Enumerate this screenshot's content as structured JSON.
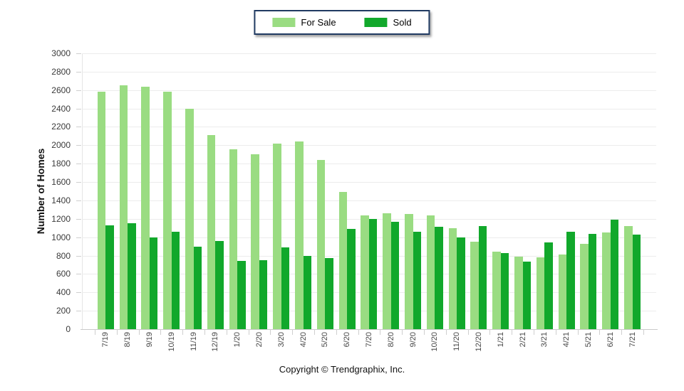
{
  "legend": {
    "for_sale_label": "For Sale",
    "sold_label": "Sold"
  },
  "colors": {
    "for_sale": "#9ADC82",
    "sold": "#11A82B",
    "legend_border": "#203A62",
    "grid": "#ECECEC",
    "axis": "#C9C9C9",
    "tick_text": "#3A3A3A"
  },
  "footer": {
    "copyright": "Copyright © Trendgraphix, Inc."
  },
  "chart_data": {
    "type": "bar",
    "title": "",
    "xlabel": "",
    "ylabel": "Number of Homes",
    "ylim": [
      0,
      3000
    ],
    "ytick_step": 200,
    "grid": true,
    "legend_position": "top-center",
    "categories": [
      "7/19",
      "8/19",
      "9/19",
      "10/19",
      "11/19",
      "12/19",
      "1/20",
      "2/20",
      "3/20",
      "4/20",
      "5/20",
      "6/20",
      "7/20",
      "8/20",
      "9/20",
      "10/20",
      "11/20",
      "12/20",
      "1/21",
      "2/21",
      "3/21",
      "4/21",
      "5/21",
      "6/21",
      "7/21"
    ],
    "series": [
      {
        "name": "For Sale",
        "values": [
          2580,
          2650,
          2640,
          2580,
          2400,
          2110,
          1960,
          1900,
          2020,
          2040,
          1840,
          1490,
          1240,
          1260,
          1250,
          1240,
          1100,
          950,
          840,
          790,
          780,
          810,
          925,
          1050,
          1120
        ]
      },
      {
        "name": "Sold",
        "values": [
          1130,
          1150,
          1000,
          1060,
          900,
          960,
          740,
          750,
          890,
          800,
          770,
          1090,
          1200,
          1170,
          1060,
          1110,
          1000,
          1120,
          830,
          735,
          945,
          1060,
          1040,
          1190,
          1030
        ]
      }
    ]
  }
}
